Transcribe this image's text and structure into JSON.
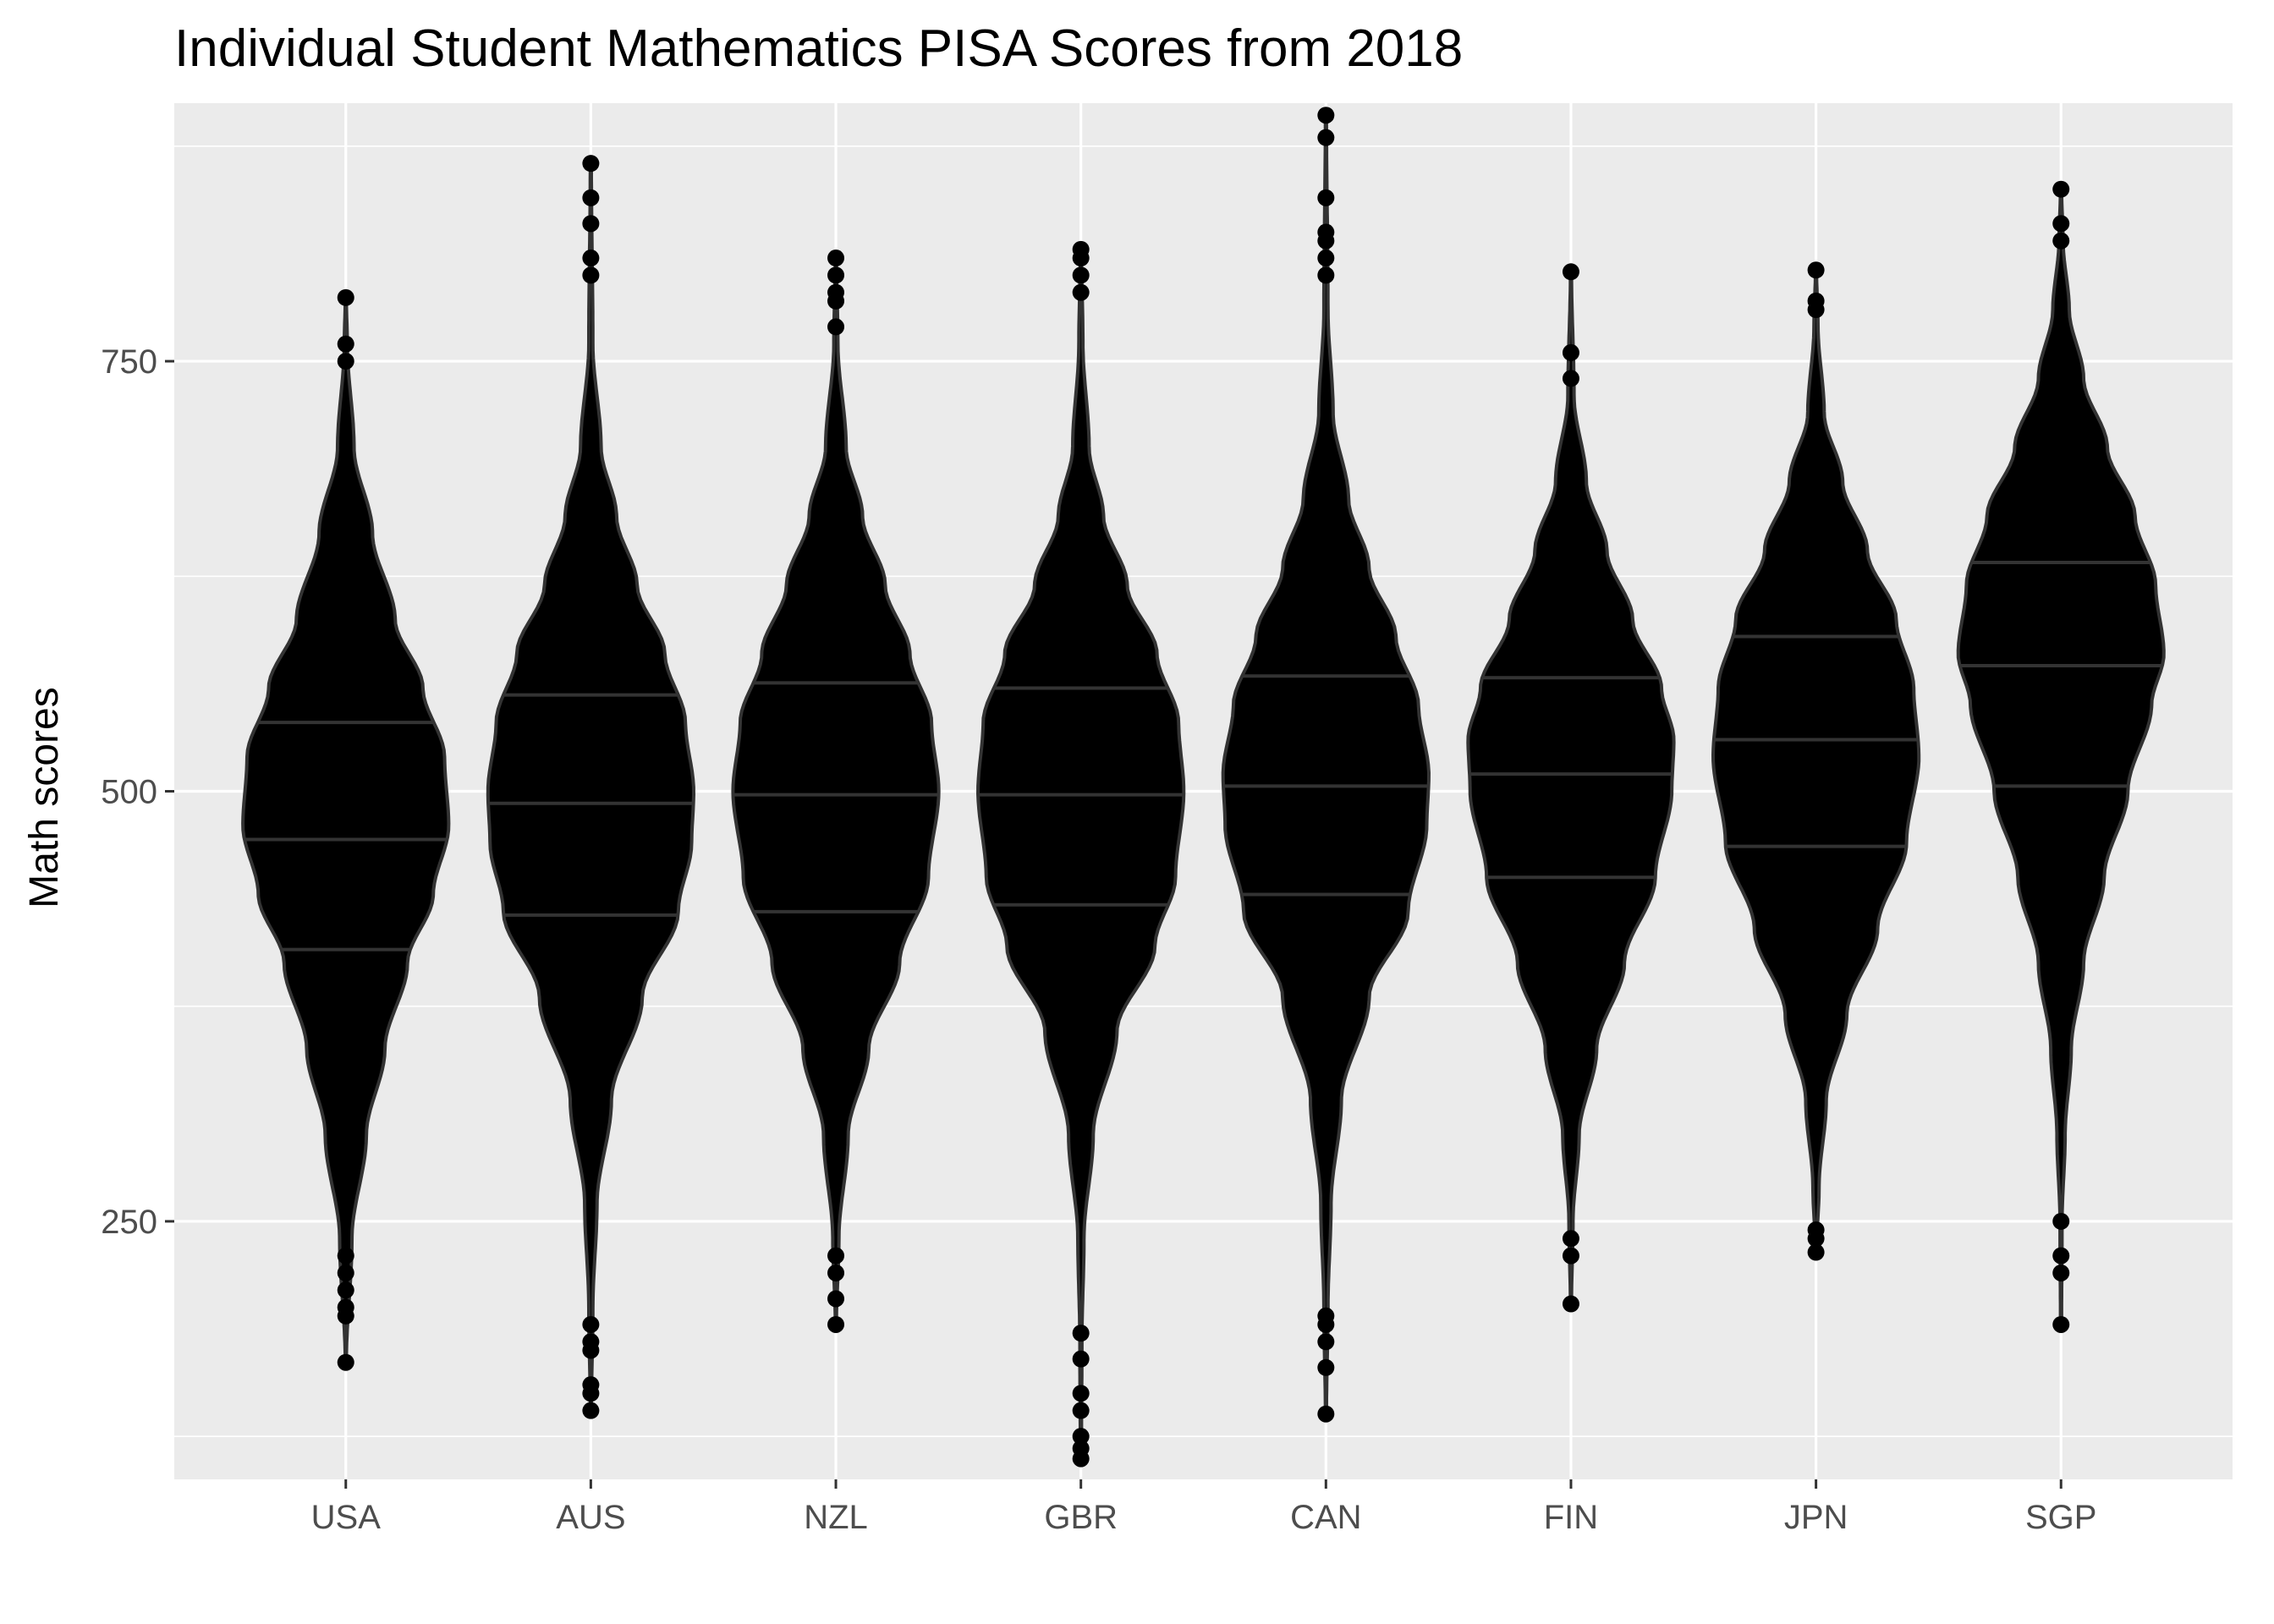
{
  "chart_data": {
    "type": "violin",
    "title": "Individual Student Mathematics PISA Scores from 2018",
    "xlabel": "",
    "ylabel": "Math scores",
    "ylim": [
      100,
      900
    ],
    "yticks": [
      250,
      500,
      750
    ],
    "grid": true,
    "background": "#ebebeb",
    "fill_color": "#000000",
    "outline_color": "#333333",
    "categories": [
      "USA",
      "AUS",
      "NZL",
      "GBR",
      "CAN",
      "FIN",
      "JPN",
      "SGP"
    ],
    "series": [
      {
        "category": "USA",
        "min": 168,
        "q1": 408,
        "median": 472,
        "q3": 540,
        "max": 787,
        "half_width": 0.42,
        "profile": [
          [
            168,
            0.005
          ],
          [
            240,
            0.06
          ],
          [
            300,
            0.2
          ],
          [
            350,
            0.38
          ],
          [
            400,
            0.6
          ],
          [
            440,
            0.85
          ],
          [
            480,
            1.0
          ],
          [
            520,
            0.96
          ],
          [
            560,
            0.75
          ],
          [
            600,
            0.48
          ],
          [
            650,
            0.26
          ],
          [
            700,
            0.08
          ],
          [
            760,
            0.015
          ],
          [
            787,
            0.005
          ]
        ]
      },
      {
        "category": "AUS",
        "min": 140,
        "q1": 428,
        "median": 493,
        "q3": 556,
        "max": 865,
        "half_width": 0.42,
        "profile": [
          [
            140,
            0.005
          ],
          [
            200,
            0.02
          ],
          [
            260,
            0.06
          ],
          [
            320,
            0.2
          ],
          [
            380,
            0.5
          ],
          [
            430,
            0.85
          ],
          [
            470,
            0.98
          ],
          [
            500,
            1.0
          ],
          [
            540,
            0.92
          ],
          [
            580,
            0.72
          ],
          [
            620,
            0.45
          ],
          [
            660,
            0.25
          ],
          [
            700,
            0.1
          ],
          [
            760,
            0.02
          ],
          [
            865,
            0.005
          ]
        ]
      },
      {
        "category": "NZL",
        "min": 190,
        "q1": 430,
        "median": 498,
        "q3": 563,
        "max": 810,
        "half_width": 0.42,
        "profile": [
          [
            190,
            0.005
          ],
          [
            240,
            0.03
          ],
          [
            300,
            0.12
          ],
          [
            350,
            0.32
          ],
          [
            400,
            0.62
          ],
          [
            450,
            0.9
          ],
          [
            500,
            1.0
          ],
          [
            540,
            0.93
          ],
          [
            580,
            0.72
          ],
          [
            620,
            0.48
          ],
          [
            660,
            0.26
          ],
          [
            700,
            0.1
          ],
          [
            760,
            0.02
          ],
          [
            810,
            0.005
          ]
        ]
      },
      {
        "category": "GBR",
        "min": 112,
        "q1": 434,
        "median": 498,
        "q3": 560,
        "max": 815,
        "half_width": 0.42,
        "profile": [
          [
            112,
            0.005
          ],
          [
            180,
            0.01
          ],
          [
            240,
            0.03
          ],
          [
            300,
            0.12
          ],
          [
            360,
            0.35
          ],
          [
            410,
            0.72
          ],
          [
            450,
            0.92
          ],
          [
            500,
            1.0
          ],
          [
            540,
            0.95
          ],
          [
            580,
            0.74
          ],
          [
            620,
            0.45
          ],
          [
            660,
            0.22
          ],
          [
            700,
            0.08
          ],
          [
            760,
            0.02
          ],
          [
            815,
            0.005
          ]
        ]
      },
      {
        "category": "CAN",
        "min": 138,
        "q1": 440,
        "median": 503,
        "q3": 567,
        "max": 893,
        "half_width": 0.42,
        "profile": [
          [
            138,
            0.005
          ],
          [
            200,
            0.02
          ],
          [
            260,
            0.05
          ],
          [
            320,
            0.15
          ],
          [
            380,
            0.42
          ],
          [
            430,
            0.8
          ],
          [
            480,
            0.98
          ],
          [
            510,
            1.0
          ],
          [
            550,
            0.9
          ],
          [
            590,
            0.68
          ],
          [
            630,
            0.42
          ],
          [
            670,
            0.22
          ],
          [
            720,
            0.07
          ],
          [
            780,
            0.02
          ],
          [
            893,
            0.005
          ]
        ]
      },
      {
        "category": "FIN",
        "min": 202,
        "q1": 450,
        "median": 510,
        "q3": 566,
        "max": 802,
        "half_width": 0.42,
        "profile": [
          [
            202,
            0.005
          ],
          [
            250,
            0.02
          ],
          [
            300,
            0.08
          ],
          [
            350,
            0.25
          ],
          [
            400,
            0.52
          ],
          [
            450,
            0.82
          ],
          [
            500,
            0.98
          ],
          [
            530,
            1.0
          ],
          [
            560,
            0.88
          ],
          [
            600,
            0.6
          ],
          [
            640,
            0.35
          ],
          [
            680,
            0.15
          ],
          [
            730,
            0.03
          ],
          [
            802,
            0.005
          ]
        ]
      },
      {
        "category": "JPN",
        "min": 232,
        "q1": 468,
        "median": 530,
        "q3": 590,
        "max": 803,
        "half_width": 0.42,
        "profile": [
          [
            232,
            0.005
          ],
          [
            270,
            0.03
          ],
          [
            320,
            0.1
          ],
          [
            370,
            0.3
          ],
          [
            420,
            0.6
          ],
          [
            470,
            0.88
          ],
          [
            520,
            1.0
          ],
          [
            560,
            0.95
          ],
          [
            600,
            0.78
          ],
          [
            640,
            0.5
          ],
          [
            680,
            0.26
          ],
          [
            720,
            0.08
          ],
          [
            770,
            0.02
          ],
          [
            803,
            0.005
          ]
        ]
      },
      {
        "category": "SGP",
        "min": 190,
        "q1": 503,
        "median": 573,
        "q3": 633,
        "max": 850,
        "half_width": 0.42,
        "profile": [
          [
            190,
            0.005
          ],
          [
            250,
            0.01
          ],
          [
            300,
            0.04
          ],
          [
            350,
            0.1
          ],
          [
            400,
            0.22
          ],
          [
            450,
            0.42
          ],
          [
            500,
            0.65
          ],
          [
            550,
            0.88
          ],
          [
            580,
            1.0
          ],
          [
            620,
            0.92
          ],
          [
            660,
            0.72
          ],
          [
            700,
            0.45
          ],
          [
            740,
            0.22
          ],
          [
            780,
            0.08
          ],
          [
            820,
            0.02
          ],
          [
            850,
            0.005
          ]
        ]
      }
    ],
    "outliers": {
      "USA": [
        168,
        195,
        200,
        210,
        220,
        230,
        750,
        760,
        787
      ],
      "AUS": [
        140,
        150,
        155,
        175,
        180,
        190,
        800,
        810,
        830,
        845,
        865
      ],
      "NZL": [
        190,
        205,
        220,
        230,
        770,
        785,
        790,
        800,
        810
      ],
      "GBR": [
        112,
        118,
        125,
        140,
        150,
        170,
        185,
        790,
        800,
        810,
        815
      ],
      "CAN": [
        138,
        165,
        180,
        190,
        195,
        800,
        810,
        820,
        825,
        845,
        880,
        893
      ],
      "FIN": [
        202,
        230,
        240,
        740,
        755,
        802
      ],
      "JPN": [
        232,
        240,
        245,
        780,
        785,
        803
      ],
      "SGP": [
        190,
        220,
        230,
        250,
        820,
        830,
        850
      ]
    }
  }
}
